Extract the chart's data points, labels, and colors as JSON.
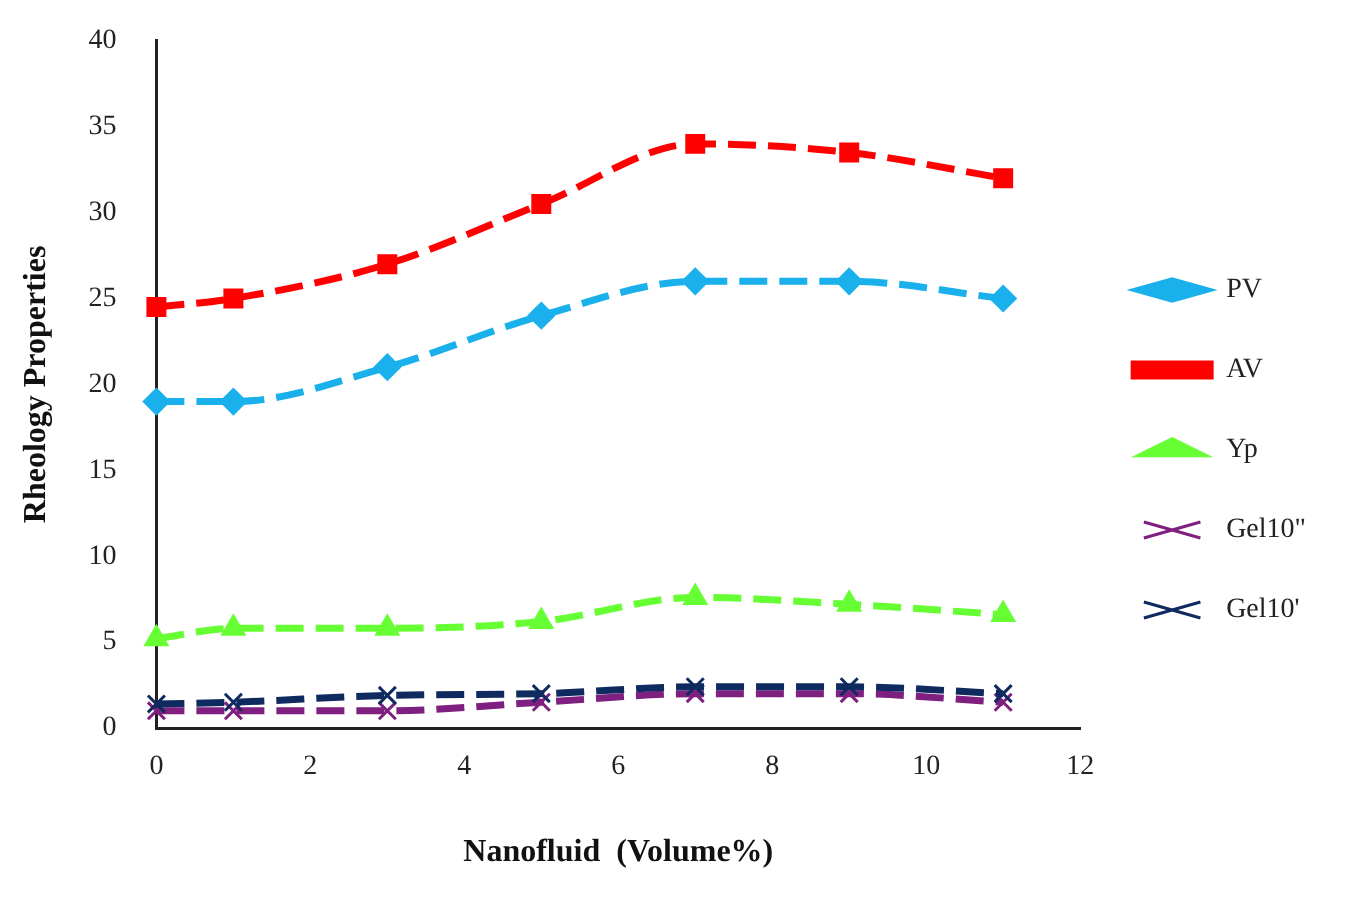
{
  "chart_data": {
    "type": "line",
    "xlabel": "Nanofluid  (Volume%)",
    "ylabel": "Rheology Properties",
    "x": [
      0,
      1,
      3,
      5,
      7,
      9,
      11
    ],
    "series": [
      {
        "name": "PV",
        "color": "#1ab0ec",
        "marker": "diamond",
        "values": [
          19,
          19,
          21,
          24,
          26,
          26,
          25
        ]
      },
      {
        "name": "AV",
        "color": "#ff0000",
        "marker": "square",
        "values": [
          24.5,
          25,
          27,
          30.5,
          34,
          33.5,
          32
        ]
      },
      {
        "name": "Yp",
        "color": "#66ff33",
        "marker": "triangle",
        "values": [
          5.2,
          5.8,
          5.8,
          6.2,
          7.6,
          7.2,
          6.6
        ]
      },
      {
        "name": "Gel10\"",
        "color": "#7f1f7f",
        "marker": "cross",
        "values": [
          1,
          1,
          1,
          1.5,
          2,
          2,
          1.5
        ]
      },
      {
        "name": "Gel10'",
        "color": "#0f2a5e",
        "marker": "cross",
        "values": [
          1.4,
          1.5,
          1.9,
          2,
          2.4,
          2.4,
          2
        ]
      }
    ],
    "xlim": [
      0,
      12
    ],
    "xticks": [
      0,
      2,
      4,
      6,
      8,
      10,
      12
    ],
    "ylim": [
      0,
      40
    ],
    "yticks": [
      0,
      5,
      10,
      15,
      20,
      25,
      30,
      35,
      40
    ],
    "grid": false,
    "legend": "right",
    "line_style": "dashed"
  }
}
